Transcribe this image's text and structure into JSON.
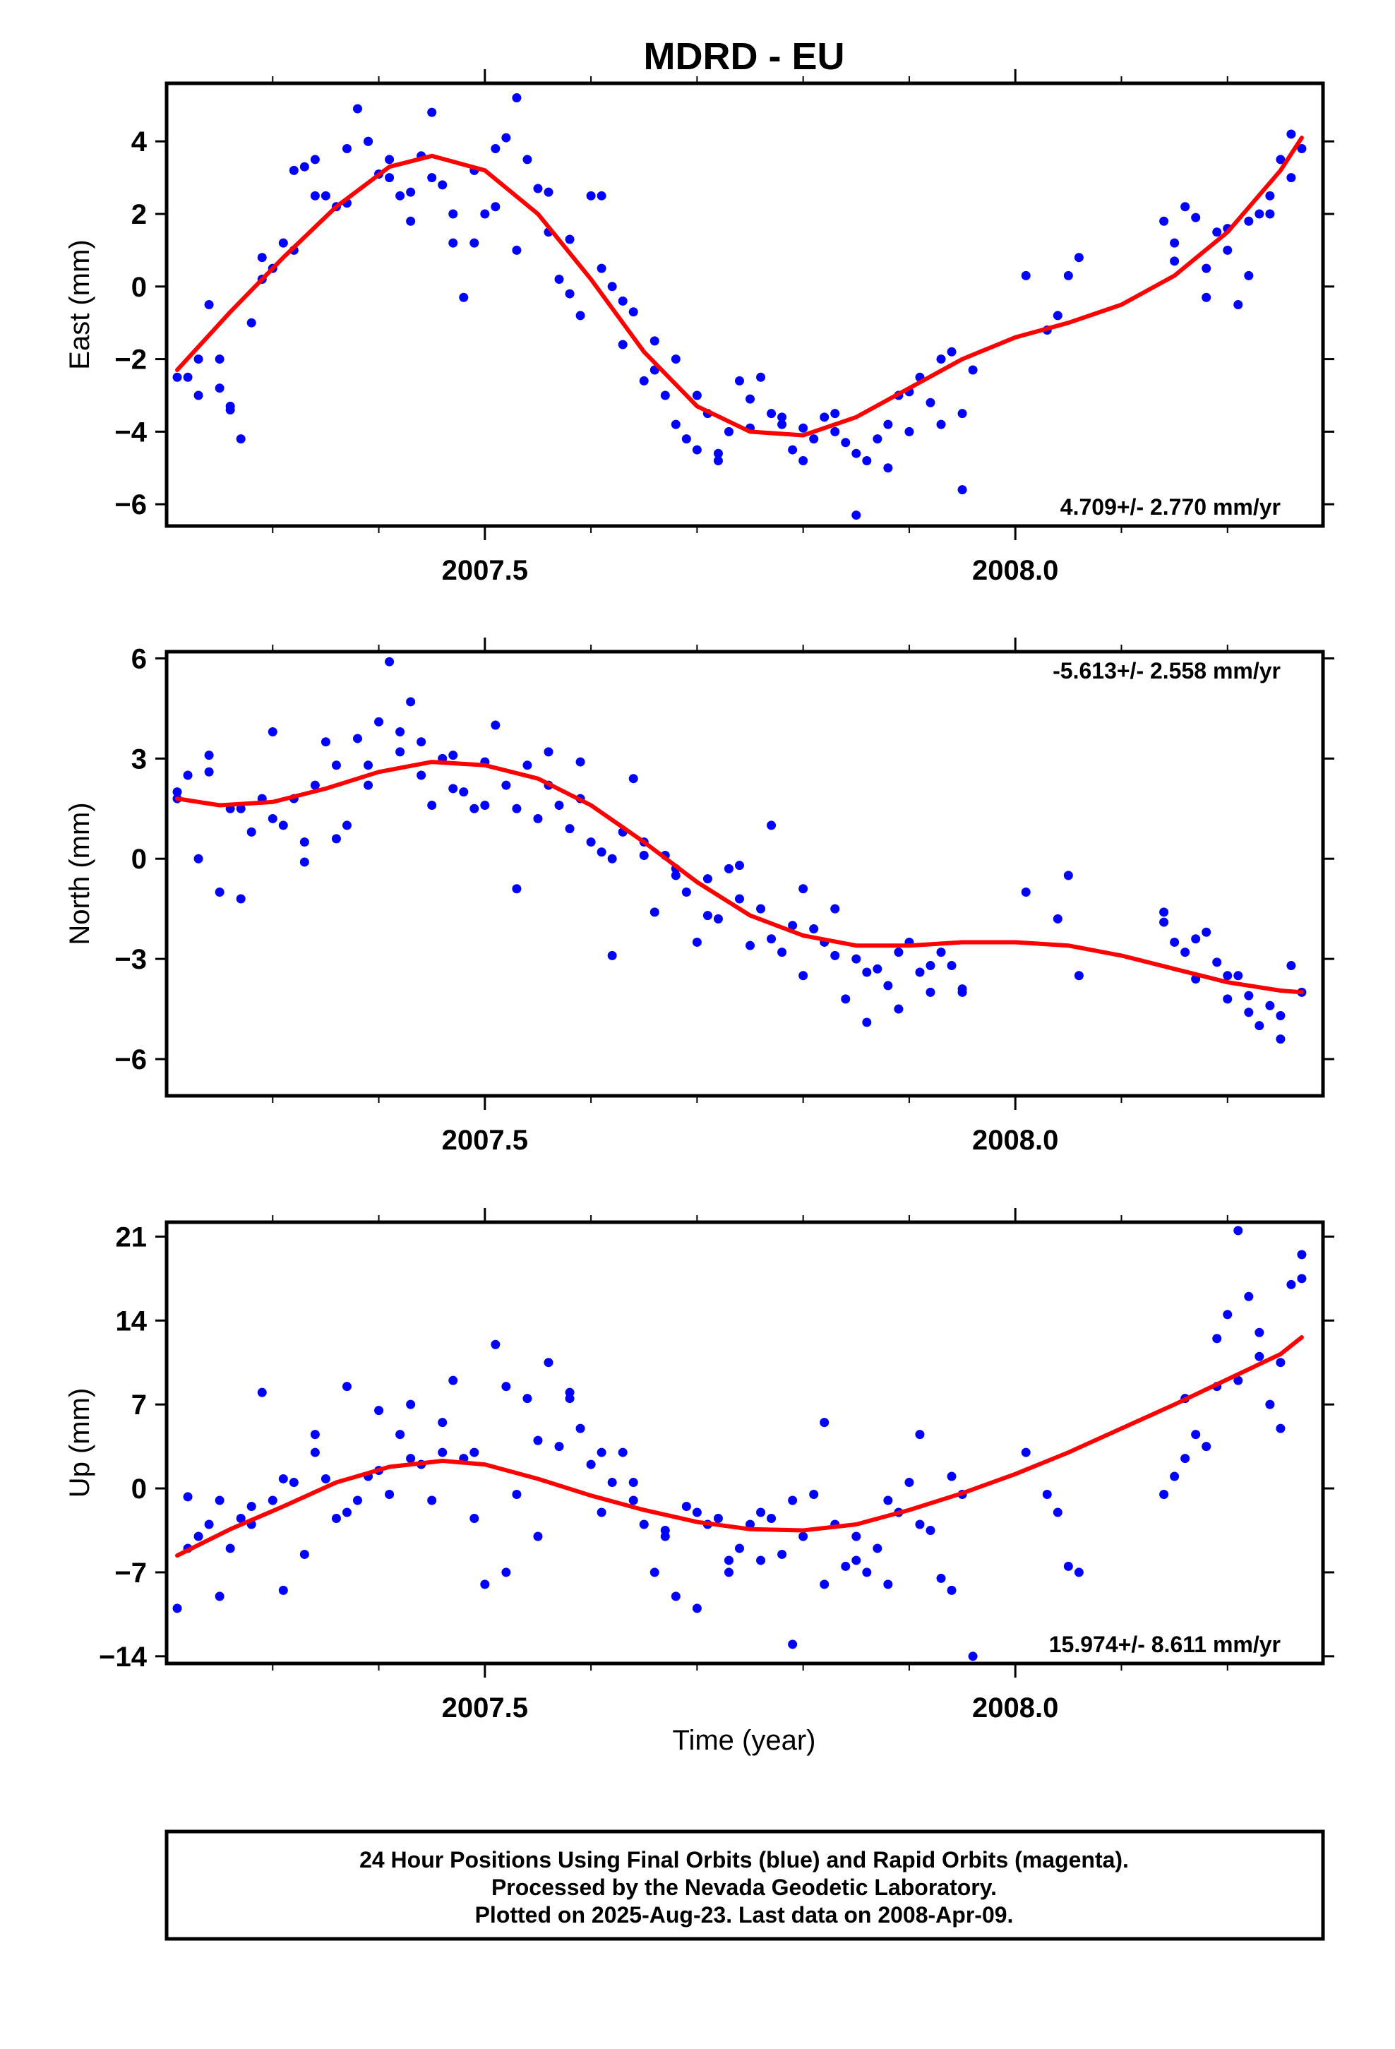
{
  "figure": {
    "title": "MDRD - EU",
    "xlabel": "Time (year)",
    "footer": [
      "24 Hour Positions Using Final Orbits (blue) and Rapid Orbits (magenta).",
      "Processed by the Nevada Geodetic Laboratory.",
      "Plotted on 2025-Aug-23. Last data on 2008-Apr-09."
    ]
  },
  "colors": {
    "points": "#0000ff",
    "fit": "#ff0000",
    "frame": "#000000"
  },
  "chart_data": [
    {
      "type": "scatter",
      "component": "east",
      "ylabel": "East (mm)",
      "rate_label": "4.709+/- 2.770 mm/yr",
      "rate_position": "bottom-right",
      "xlim": [
        2007.2,
        2008.29
      ],
      "ylim": [
        -6.6,
        5.6
      ],
      "yticks": [
        4,
        2,
        0,
        -2,
        -4,
        -6
      ],
      "ytick_labels": [
        "4",
        "2",
        "0",
        "−2",
        "−4",
        "−6"
      ],
      "xticks": [
        2007.5,
        2008.0
      ],
      "xtick_labels": [
        "2007.5",
        "2008.0"
      ],
      "points": {
        "name": "Final Orbits (blue)",
        "x": [
          2007.22,
          2007.23,
          2007.24,
          2007.25,
          2007.26,
          2007.27,
          2007.28,
          2007.29,
          2007.3,
          2007.31,
          2007.32,
          2007.33,
          2007.34,
          2007.35,
          2007.36,
          2007.37,
          2007.38,
          2007.39,
          2007.4,
          2007.41,
          2007.42,
          2007.43,
          2007.44,
          2007.45,
          2007.46,
          2007.47,
          2007.48,
          2007.49,
          2007.5,
          2007.51,
          2007.52,
          2007.53,
          2007.54,
          2007.55,
          2007.56,
          2007.57,
          2007.58,
          2007.59,
          2007.6,
          2007.61,
          2007.62,
          2007.63,
          2007.64,
          2007.65,
          2007.66,
          2007.67,
          2007.68,
          2007.69,
          2007.7,
          2007.71,
          2007.72,
          2007.73,
          2007.74,
          2007.75,
          2007.76,
          2007.77,
          2007.78,
          2007.79,
          2007.8,
          2007.81,
          2007.82,
          2007.83,
          2007.84,
          2007.85,
          2007.86,
          2007.87,
          2007.88,
          2007.89,
          2007.9,
          2007.91,
          2007.92,
          2007.93,
          2007.94,
          2007.95,
          2007.96,
          2008.01,
          2008.04,
          2008.05,
          2008.06,
          2008.14,
          2008.15,
          2008.16,
          2008.17,
          2008.18,
          2008.19,
          2008.2,
          2008.21,
          2008.22,
          2008.23,
          2008.24,
          2008.25,
          2008.26,
          2008.27
        ],
        "y": [
          -2.5,
          -2.0,
          -0.5,
          -2.8,
          -3.3,
          -4.2,
          -1.0,
          0.8,
          0.5,
          1.2,
          1.0,
          3.3,
          3.5,
          2.5,
          2.2,
          3.8,
          4.9,
          4.0,
          3.1,
          3.0,
          2.5,
          2.6,
          3.6,
          4.8,
          2.8,
          1.2,
          -0.3,
          3.2,
          2.0,
          3.8,
          4.1,
          1.0,
          3.5,
          2.7,
          1.5,
          0.2,
          -0.2,
          -0.8,
          2.5,
          0.5,
          0.0,
          -1.6,
          -0.7,
          -2.6,
          -2.3,
          -3.0,
          -3.8,
          -4.2,
          -4.5,
          -3.5,
          -4.8,
          -4.0,
          -2.6,
          -3.1,
          -2.5,
          -3.5,
          -3.8,
          -4.5,
          -3.9,
          -4.2,
          -3.6,
          -4.0,
          -4.3,
          -4.6,
          -4.8,
          -4.2,
          -3.8,
          -3.0,
          -4.0,
          -2.5,
          -3.2,
          -2.0,
          -1.8,
          -3.5,
          -2.3,
          0.3,
          -0.8,
          0.3,
          0.8,
          1.8,
          0.7,
          2.2,
          1.9,
          0.5,
          1.5,
          1.0,
          -0.5,
          1.8,
          2.0,
          2.5,
          3.5,
          4.2,
          3.8
        ],
        "extra_x": [
          2007.21,
          2007.23,
          2007.25,
          2007.26,
          2007.29,
          2007.32,
          2007.34,
          2007.37,
          2007.39,
          2007.41,
          2007.43,
          2007.45,
          2007.47,
          2007.49,
          2007.51,
          2007.53,
          2007.56,
          2007.58,
          2007.61,
          2007.63,
          2007.66,
          2007.68,
          2007.7,
          2007.72,
          2007.75,
          2007.78,
          2007.8,
          2007.83,
          2007.85,
          2007.88,
          2007.9,
          2007.93,
          2007.95,
          2008.03,
          2008.15,
          2008.18,
          2008.2,
          2008.22,
          2008.24,
          2008.26
        ],
        "extra_y": [
          -2.5,
          -3.0,
          -2.0,
          -3.4,
          0.2,
          3.2,
          2.5,
          2.3,
          4.0,
          3.5,
          1.8,
          3.0,
          2.0,
          1.2,
          2.2,
          5.2,
          2.6,
          1.3,
          2.5,
          -0.4,
          -1.5,
          -2.0,
          -3.0,
          -4.6,
          -3.9,
          -3.6,
          -4.8,
          -3.5,
          -6.3,
          -5.0,
          -2.9,
          -3.8,
          -5.6,
          -1.2,
          1.2,
          -0.3,
          1.6,
          0.3,
          2.0,
          3.0
        ]
      },
      "fit": {
        "name": "fit",
        "x": [
          2007.21,
          2007.26,
          2007.31,
          2007.36,
          2007.41,
          2007.45,
          2007.5,
          2007.55,
          2007.6,
          2007.65,
          2007.7,
          2007.75,
          2007.8,
          2007.85,
          2007.9,
          2007.95,
          2008.0,
          2008.05,
          2008.1,
          2008.15,
          2008.2,
          2008.25,
          2008.27
        ],
        "y": [
          -2.3,
          -0.7,
          0.8,
          2.2,
          3.3,
          3.6,
          3.2,
          2.0,
          0.2,
          -1.8,
          -3.3,
          -4.0,
          -4.1,
          -3.6,
          -2.8,
          -2.0,
          -1.4,
          -1.0,
          -0.5,
          0.3,
          1.5,
          3.2,
          4.1
        ]
      }
    },
    {
      "type": "scatter",
      "component": "north",
      "ylabel": "North (mm)",
      "rate_label": "-5.613+/- 2.558 mm/yr",
      "rate_position": "top-right",
      "xlim": [
        2007.2,
        2008.29
      ],
      "ylim": [
        -7.1,
        6.2
      ],
      "yticks": [
        6,
        3,
        0,
        -3,
        -6
      ],
      "ytick_labels": [
        "6",
        "3",
        "0",
        "−3",
        "−6"
      ],
      "xticks": [
        2007.5,
        2008.0
      ],
      "xtick_labels": [
        "2007.5",
        "2008.0"
      ],
      "points": {
        "name": "Final Orbits (blue)",
        "x": [
          2007.21,
          2007.22,
          2007.23,
          2007.24,
          2007.25,
          2007.26,
          2007.27,
          2007.28,
          2007.29,
          2007.3,
          2007.31,
          2007.32,
          2007.33,
          2007.34,
          2007.35,
          2007.36,
          2007.37,
          2007.38,
          2007.39,
          2007.4,
          2007.41,
          2007.42,
          2007.43,
          2007.44,
          2007.45,
          2007.46,
          2007.47,
          2007.48,
          2007.49,
          2007.5,
          2007.51,
          2007.52,
          2007.53,
          2007.54,
          2007.55,
          2007.56,
          2007.57,
          2007.58,
          2007.59,
          2007.6,
          2007.61,
          2007.62,
          2007.63,
          2007.64,
          2007.65,
          2007.66,
          2007.67,
          2007.68,
          2007.69,
          2007.7,
          2007.71,
          2007.72,
          2007.73,
          2007.74,
          2007.75,
          2007.76,
          2007.77,
          2007.78,
          2007.79,
          2007.8,
          2007.81,
          2007.82,
          2007.83,
          2007.84,
          2007.85,
          2007.86,
          2007.87,
          2007.88,
          2007.89,
          2007.9,
          2007.91,
          2007.92,
          2007.93,
          2007.94,
          2007.95,
          2008.01,
          2008.04,
          2008.05,
          2008.06,
          2008.14,
          2008.15,
          2008.16,
          2008.17,
          2008.18,
          2008.19,
          2008.2,
          2008.21,
          2008.22,
          2008.23,
          2008.24,
          2008.25,
          2008.26,
          2008.27
        ],
        "y": [
          1.8,
          2.5,
          0.0,
          2.6,
          -1.0,
          1.5,
          -1.2,
          0.8,
          1.8,
          3.8,
          1.0,
          1.8,
          0.5,
          2.2,
          3.5,
          2.8,
          1.0,
          3.6,
          2.8,
          4.1,
          5.9,
          3.2,
          4.7,
          3.5,
          1.6,
          3.0,
          3.1,
          2.0,
          1.5,
          1.6,
          4.0,
          2.2,
          1.5,
          2.8,
          1.2,
          2.2,
          1.6,
          0.9,
          2.9,
          0.5,
          0.2,
          -2.9,
          0.8,
          2.4,
          0.5,
          -1.6,
          0.1,
          -0.3,
          -1.0,
          -2.5,
          -0.6,
          -1.8,
          -0.3,
          -1.2,
          -2.6,
          -1.5,
          -2.4,
          -2.8,
          -2.0,
          -3.5,
          -2.1,
          -2.5,
          -2.9,
          -4.2,
          -3.0,
          -4.9,
          -3.3,
          -3.8,
          -2.8,
          -2.5,
          -3.4,
          -4.0,
          -2.8,
          -3.2,
          -3.9,
          -1.0,
          -1.8,
          -0.5,
          -3.5,
          -1.6,
          -2.5,
          -2.8,
          -3.6,
          -2.2,
          -3.1,
          -4.2,
          -3.5,
          -4.6,
          -5.0,
          -4.4,
          -5.4,
          -3.2,
          -4.0
        ],
        "extra_x": [
          2007.21,
          2007.24,
          2007.27,
          2007.3,
          2007.33,
          2007.36,
          2007.39,
          2007.42,
          2007.44,
          2007.47,
          2007.5,
          2007.53,
          2007.56,
          2007.59,
          2007.62,
          2007.65,
          2007.68,
          2007.71,
          2007.74,
          2007.77,
          2007.8,
          2007.83,
          2007.86,
          2007.89,
          2007.92,
          2007.95,
          2008.14,
          2008.17,
          2008.2,
          2008.22,
          2008.25
        ],
        "extra_y": [
          2.0,
          3.1,
          1.5,
          1.2,
          -0.1,
          0.6,
          2.2,
          3.8,
          2.5,
          2.1,
          2.9,
          -0.9,
          3.2,
          1.8,
          0.0,
          0.1,
          -0.5,
          -1.7,
          -0.2,
          1.0,
          -0.9,
          -1.5,
          -3.4,
          -4.5,
          -3.2,
          -4.0,
          -1.9,
          -2.4,
          -3.5,
          -4.1,
          -4.7
        ]
      },
      "fit": {
        "name": "fit",
        "x": [
          2007.21,
          2007.25,
          2007.3,
          2007.35,
          2007.4,
          2007.45,
          2007.5,
          2007.55,
          2007.6,
          2007.65,
          2007.7,
          2007.75,
          2007.8,
          2007.85,
          2007.9,
          2007.95,
          2008.0,
          2008.05,
          2008.1,
          2008.15,
          2008.2,
          2008.25,
          2008.27
        ],
        "y": [
          1.8,
          1.6,
          1.7,
          2.1,
          2.6,
          2.9,
          2.8,
          2.4,
          1.6,
          0.5,
          -0.7,
          -1.7,
          -2.3,
          -2.6,
          -2.6,
          -2.5,
          -2.5,
          -2.6,
          -2.9,
          -3.3,
          -3.7,
          -3.95,
          -4.0
        ]
      }
    },
    {
      "type": "scatter",
      "component": "up",
      "ylabel": "Up (mm)",
      "rate_label": "15.974+/- 8.611 mm/yr",
      "rate_position": "bottom-right",
      "xlim": [
        2007.2,
        2008.29
      ],
      "ylim": [
        -14.6,
        22.2
      ],
      "yticks": [
        21,
        14,
        7,
        0,
        -7,
        -14
      ],
      "ytick_labels": [
        "21",
        "14",
        "7",
        "0",
        "−7",
        "−14"
      ],
      "xticks": [
        2007.5,
        2008.0
      ],
      "xtick_labels": [
        "2007.5",
        "2008.0"
      ],
      "points": {
        "name": "Final Orbits (blue)",
        "x": [
          2007.21,
          2007.22,
          2007.23,
          2007.24,
          2007.25,
          2007.26,
          2007.27,
          2007.28,
          2007.29,
          2007.3,
          2007.31,
          2007.32,
          2007.33,
          2007.34,
          2007.35,
          2007.36,
          2007.37,
          2007.38,
          2007.39,
          2007.4,
          2007.41,
          2007.42,
          2007.43,
          2007.44,
          2007.45,
          2007.46,
          2007.47,
          2007.48,
          2007.49,
          2007.5,
          2007.51,
          2007.52,
          2007.53,
          2007.54,
          2007.55,
          2007.56,
          2007.57,
          2007.58,
          2007.59,
          2007.6,
          2007.61,
          2007.62,
          2007.63,
          2007.64,
          2007.65,
          2007.66,
          2007.67,
          2007.68,
          2007.69,
          2007.7,
          2007.71,
          2007.72,
          2007.73,
          2007.74,
          2007.75,
          2007.76,
          2007.77,
          2007.78,
          2007.79,
          2007.8,
          2007.81,
          2007.82,
          2007.83,
          2007.84,
          2007.85,
          2007.86,
          2007.87,
          2007.88,
          2007.89,
          2007.9,
          2007.91,
          2007.92,
          2007.93,
          2007.94,
          2007.95,
          2007.96,
          2008.01,
          2008.03,
          2008.04,
          2008.05,
          2008.06,
          2008.14,
          2008.15,
          2008.16,
          2008.17,
          2008.18,
          2008.19,
          2008.2,
          2008.21,
          2008.22,
          2008.23,
          2008.24,
          2008.25,
          2008.26,
          2008.27
        ],
        "y": [
          -10.0,
          -0.7,
          -4.0,
          -3.0,
          -9.0,
          -5.0,
          -2.5,
          -1.5,
          8.0,
          -1.0,
          -8.5,
          0.5,
          -5.5,
          4.5,
          0.8,
          -2.5,
          8.5,
          -1.0,
          1.0,
          6.5,
          -0.5,
          4.5,
          7.0,
          2.0,
          -1.0,
          3.0,
          9.0,
          2.5,
          -2.5,
          -8.0,
          12.0,
          8.5,
          -0.5,
          7.5,
          -4.0,
          10.5,
          3.5,
          7.5,
          5.0,
          2.0,
          -2.0,
          0.5,
          3.0,
          -1.0,
          -3.0,
          -7.0,
          -3.5,
          -9.0,
          -1.5,
          -10.0,
          -3.0,
          -2.5,
          -7.0,
          -5.0,
          -3.0,
          -6.0,
          -2.5,
          -5.5,
          -13.0,
          -4.0,
          -0.5,
          -8.0,
          -3.0,
          -6.5,
          -4.0,
          -7.0,
          -5.0,
          -8.0,
          -2.0,
          0.5,
          4.5,
          -3.5,
          -7.5,
          1.0,
          -0.5,
          -14.0,
          3.0,
          -0.5,
          -2.0,
          -6.5,
          -7.0,
          -0.5,
          1.0,
          7.5,
          4.5,
          3.5,
          12.5,
          14.5,
          9.0,
          16.0,
          13.0,
          7.0,
          10.5,
          17.0,
          19.5
        ],
        "extra_x": [
          2007.22,
          2007.25,
          2007.28,
          2007.31,
          2007.34,
          2007.37,
          2007.4,
          2007.43,
          2007.46,
          2007.49,
          2007.52,
          2007.55,
          2007.58,
          2007.61,
          2007.64,
          2007.67,
          2007.7,
          2007.73,
          2007.76,
          2007.79,
          2007.82,
          2007.85,
          2007.88,
          2007.91,
          2007.94,
          2008.16,
          2008.19,
          2008.21,
          2008.23,
          2008.25,
          2008.27
        ],
        "extra_y": [
          -5.0,
          -1.0,
          -3.0,
          0.8,
          3.0,
          -2.0,
          1.5,
          2.5,
          5.5,
          3.0,
          -7.0,
          4.0,
          8.0,
          3.0,
          0.5,
          -4.0,
          -2.0,
          -6.0,
          -2.0,
          -1.0,
          5.5,
          -6.0,
          -1.0,
          -3.0,
          -8.5,
          2.5,
          8.5,
          21.5,
          11.0,
          5.0,
          17.5
        ]
      },
      "fit": {
        "name": "fit",
        "x": [
          2007.21,
          2007.26,
          2007.31,
          2007.36,
          2007.41,
          2007.46,
          2007.5,
          2007.55,
          2007.6,
          2007.65,
          2007.7,
          2007.75,
          2007.8,
          2007.85,
          2007.9,
          2007.95,
          2008.0,
          2008.05,
          2008.1,
          2008.15,
          2008.2,
          2008.25,
          2008.27
        ],
        "y": [
          -5.6,
          -3.4,
          -1.5,
          0.5,
          1.8,
          2.3,
          2.0,
          0.8,
          -0.6,
          -1.8,
          -2.8,
          -3.4,
          -3.5,
          -3.0,
          -1.8,
          -0.4,
          1.2,
          3.0,
          5.0,
          7.0,
          9.1,
          11.2,
          12.6
        ]
      }
    }
  ]
}
